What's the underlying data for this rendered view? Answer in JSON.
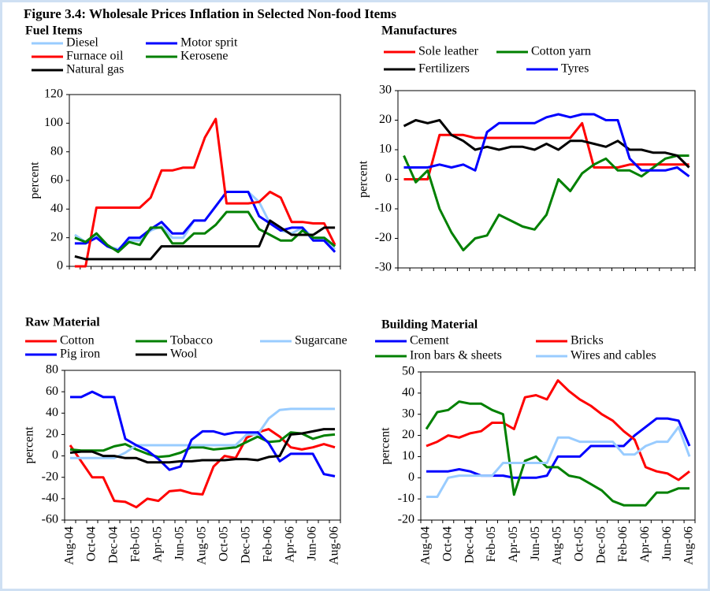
{
  "title": "Figure 3.4: Wholesale Prices Inflation in Selected Non-food Items",
  "chart_data": [
    {
      "type": "line",
      "title": "Fuel Items",
      "ylabel": "percent",
      "ylim": [
        0,
        120
      ],
      "yticks": [
        0,
        20,
        40,
        60,
        80,
        100,
        120
      ],
      "series": [
        {
          "name": "Diesel",
          "color": "#99ccff",
          "values": [
            22,
            17,
            21,
            14,
            12,
            18,
            18,
            25,
            28,
            20,
            20,
            32,
            32,
            42,
            52,
            52,
            52,
            45,
            30,
            25,
            23,
            27,
            20,
            18,
            12
          ]
        },
        {
          "name": "Motor sprit",
          "color": "#0000ff",
          "values": [
            16,
            16,
            20,
            14,
            11,
            20,
            20,
            26,
            31,
            23,
            23,
            32,
            32,
            42,
            52,
            52,
            52,
            35,
            30,
            25,
            27,
            27,
            18,
            18,
            10
          ]
        },
        {
          "name": "Furnace oil",
          "color": "#ff0000",
          "values": [
            0,
            0,
            41,
            41,
            41,
            41,
            41,
            48,
            67,
            67,
            69,
            69,
            90,
            103,
            44,
            44,
            44,
            45,
            52,
            48,
            31,
            31,
            30,
            30,
            15
          ]
        },
        {
          "name": "Kerosene",
          "color": "#008000",
          "values": [
            20,
            17,
            23,
            15,
            10,
            17,
            15,
            27,
            27,
            16,
            16,
            23,
            23,
            29,
            38,
            38,
            38,
            26,
            22,
            18,
            18,
            25,
            20,
            20,
            14
          ]
        },
        {
          "name": "Natural gas",
          "color": "#000000",
          "values": [
            7,
            5,
            5,
            5,
            5,
            5,
            5,
            5,
            14,
            14,
            14,
            14,
            14,
            14,
            14,
            14,
            14,
            14,
            32,
            27,
            22,
            22,
            22,
            27,
            27
          ]
        }
      ]
    },
    {
      "type": "line",
      "title": "Manufactures",
      "ylabel": "percent",
      "ylim": [
        -30,
        30
      ],
      "yticks": [
        -30,
        -20,
        -10,
        0,
        10,
        20,
        30
      ],
      "series": [
        {
          "name": "Sole leather",
          "color": "#ff0000",
          "values": [
            0,
            0,
            0,
            15,
            15,
            15,
            14,
            14,
            14,
            14,
            14,
            14,
            14,
            14,
            14,
            19,
            4,
            4,
            4,
            5,
            5,
            5,
            5,
            5,
            5
          ]
        },
        {
          "name": "Cotton yarn",
          "color": "#008000",
          "values": [
            8,
            -1,
            3,
            -10,
            -18,
            -24,
            -20,
            -19,
            -12,
            -14,
            -16,
            -17,
            -12,
            0,
            -4,
            2,
            5,
            7,
            3,
            3,
            1,
            4,
            7,
            8,
            8
          ]
        },
        {
          "name": "Fertilizers",
          "color": "#000000",
          "values": [
            18,
            20,
            19,
            20,
            15,
            13,
            10,
            11,
            10,
            11,
            11,
            10,
            12,
            10,
            13,
            13,
            12,
            11,
            13,
            10,
            10,
            9,
            9,
            8,
            4
          ]
        },
        {
          "name": "Tyres",
          "color": "#0000ff",
          "values": [
            4,
            4,
            4,
            5,
            4,
            5,
            3,
            16,
            19,
            19,
            19,
            19,
            21,
            22,
            21,
            22,
            22,
            20,
            20,
            7,
            3,
            3,
            3,
            4,
            1
          ]
        }
      ]
    },
    {
      "type": "line",
      "title": "Raw Material",
      "ylabel": "percent",
      "ylim": [
        -60,
        80
      ],
      "yticks": [
        -60,
        -40,
        -20,
        0,
        20,
        40,
        60,
        80
      ],
      "categories": [
        "Aug-04",
        null,
        "Oct-04",
        null,
        "Dec-04",
        null,
        "Feb-05",
        null,
        "Apr-05",
        null,
        "Jun-05",
        null,
        "Aug-05",
        null,
        "Oct-05",
        null,
        "Dec-05",
        null,
        "Feb-06",
        null,
        "Apr-06",
        null,
        "Jun-06",
        null,
        "Aug-06"
      ],
      "series": [
        {
          "name": "Cotton",
          "color": "#ff0000",
          "values": [
            10,
            -5,
            -20,
            -20,
            -42,
            -43,
            -48,
            -40,
            -42,
            -33,
            -32,
            -35,
            -36,
            -10,
            0,
            -2,
            17,
            22,
            25,
            18,
            8,
            6,
            8,
            11,
            8
          ]
        },
        {
          "name": "Tobacco",
          "color": "#008000",
          "values": [
            6,
            5,
            5,
            5,
            9,
            11,
            6,
            2,
            -1,
            0,
            3,
            8,
            8,
            6,
            7,
            8,
            13,
            18,
            13,
            14,
            22,
            21,
            16,
            19,
            20
          ]
        },
        {
          "name": "Sugarcane",
          "color": "#99ccff",
          "values": [
            -2,
            -2,
            -2,
            -2,
            -2,
            3,
            10,
            10,
            10,
            10,
            10,
            10,
            10,
            10,
            10,
            10,
            20,
            20,
            35,
            43,
            44,
            44,
            44,
            44,
            44
          ]
        },
        {
          "name": "Pig iron",
          "color": "#0000ff",
          "values": [
            55,
            55,
            60,
            55,
            55,
            16,
            10,
            5,
            -3,
            -13,
            -10,
            15,
            23,
            23,
            20,
            22,
            22,
            22,
            12,
            -5,
            2,
            2,
            2,
            -17,
            -19
          ]
        },
        {
          "name": "Wool",
          "color": "#000000",
          "values": [
            3,
            4,
            4,
            0,
            0,
            -2,
            -2,
            -6,
            -6,
            -6,
            -5,
            -5,
            -4,
            -4,
            -4,
            -3,
            -3,
            -4,
            -1,
            0,
            20,
            21,
            23,
            25,
            25
          ]
        }
      ]
    },
    {
      "type": "line",
      "title": "Building Material",
      "ylabel": "percent",
      "ylim": [
        -20,
        50
      ],
      "yticks": [
        -20,
        -10,
        0,
        10,
        20,
        30,
        40,
        50
      ],
      "categories": [
        "Aug-04",
        null,
        "Oct-04",
        null,
        "Dec-04",
        null,
        "Feb-05",
        null,
        "Apr-05",
        null,
        "Jun-05",
        null,
        "Aug-05",
        null,
        "Oct-05",
        null,
        "Dec-05",
        null,
        "Feb-06",
        null,
        "Apr-06",
        null,
        "Jun-06",
        null,
        "Aug-06"
      ],
      "series": [
        {
          "name": "Cement",
          "color": "#0000ff",
          "values": [
            3,
            3,
            3,
            4,
            3,
            1,
            1,
            1,
            0,
            0,
            0,
            1,
            10,
            10,
            10,
            15,
            15,
            15,
            15,
            20,
            24,
            28,
            28,
            27,
            15
          ]
        },
        {
          "name": "Bricks",
          "color": "#ff0000",
          "values": [
            15,
            17,
            20,
            19,
            21,
            22,
            26,
            26,
            23,
            38,
            39,
            37,
            46,
            41,
            37,
            34,
            30,
            27,
            22,
            18,
            5,
            3,
            2,
            -1,
            3
          ]
        },
        {
          "name": "Iron bars & sheets",
          "color": "#008000",
          "values": [
            23,
            31,
            32,
            36,
            35,
            35,
            32,
            30,
            -8,
            8,
            10,
            5,
            5,
            1,
            0,
            -3,
            -6,
            -11,
            -13,
            -13,
            -13,
            -7,
            -7,
            -5,
            -5
          ]
        },
        {
          "name": "Wires and cables",
          "color": "#99ccff",
          "values": [
            -9,
            -9,
            0,
            1,
            1,
            1,
            1,
            7,
            7,
            7,
            7,
            7,
            19,
            19,
            17,
            17,
            17,
            17,
            11,
            11,
            15,
            17,
            17,
            24,
            10
          ]
        }
      ]
    }
  ]
}
